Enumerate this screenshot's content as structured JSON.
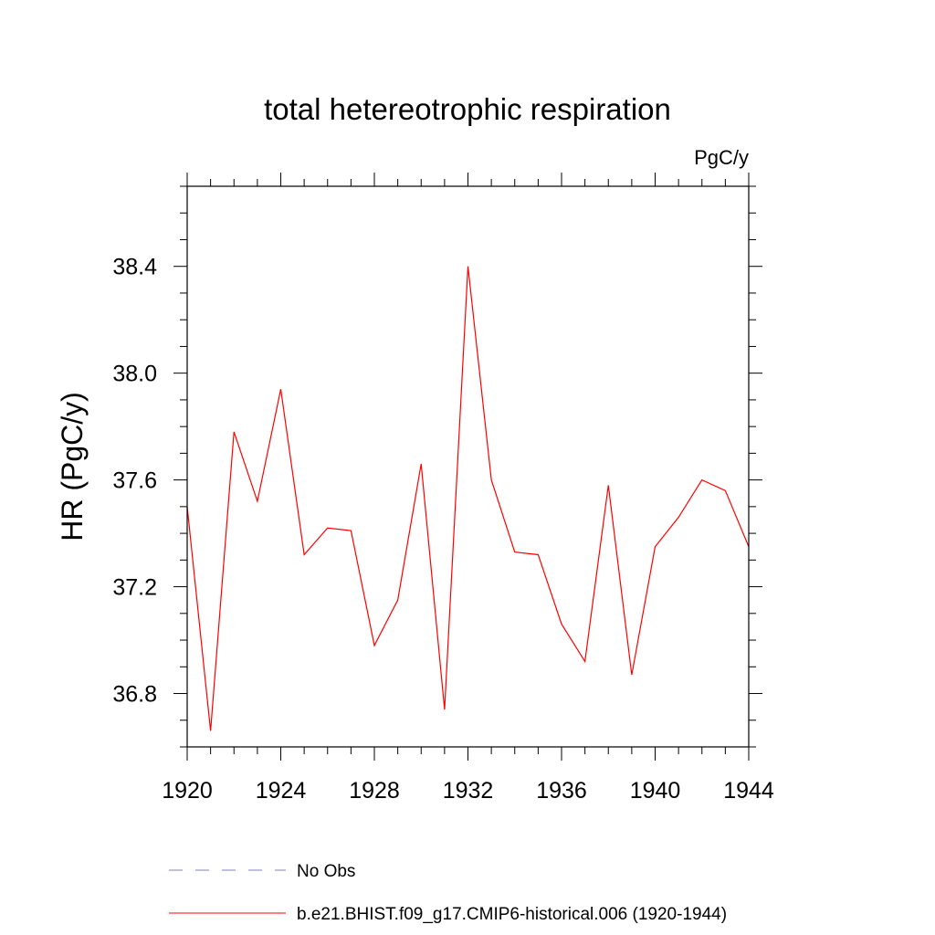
{
  "chart_data": {
    "type": "line",
    "title": "total hetereotrophic respiration",
    "units_label": "PgC/y",
    "xlabel": "",
    "ylabel": "HR  (PgC/y)",
    "xlim": [
      1920,
      1944
    ],
    "ylim": [
      36.6,
      38.7
    ],
    "x_ticks": [
      "1920",
      "1924",
      "1928",
      "1932",
      "1936",
      "1940",
      "1944"
    ],
    "y_ticks": [
      "36.8",
      "37.2",
      "37.6",
      "38.0",
      "38.4"
    ],
    "grid": false,
    "legend_position": "bottom",
    "x": [
      1920,
      1921,
      1922,
      1923,
      1924,
      1925,
      1926,
      1927,
      1928,
      1929,
      1930,
      1931,
      1932,
      1933,
      1934,
      1935,
      1936,
      1937,
      1938,
      1939,
      1940,
      1941,
      1942,
      1943,
      1944
    ],
    "series": [
      {
        "name": "b.e21.BHIST.f09_g17.CMIP6-historical.006 (1920-1944)",
        "color": "#ff0000",
        "style": "solid",
        "values": [
          37.5,
          36.66,
          37.78,
          37.52,
          37.94,
          37.32,
          37.42,
          37.41,
          36.98,
          37.15,
          37.66,
          36.74,
          38.4,
          37.6,
          37.33,
          37.32,
          37.06,
          36.92,
          37.58,
          36.87,
          37.35,
          37.46,
          37.6,
          37.56,
          37.35
        ]
      }
    ],
    "legend": [
      {
        "label": "No Obs",
        "color": "#7f7fbf",
        "style": "dashed"
      },
      {
        "label": "b.e21.BHIST.f09_g17.CMIP6-historical.006 (1920-1944)",
        "color": "#ff0000",
        "style": "solid"
      }
    ]
  }
}
